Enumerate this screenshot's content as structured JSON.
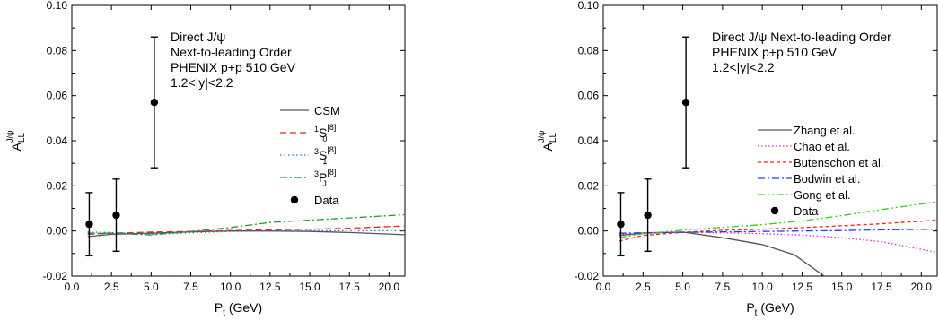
{
  "chart_data": [
    {
      "type": "line",
      "xlabel": "P",
      "xlabel_sub": "t",
      "xlabel_unit": " (GeV)",
      "ylabel": "A",
      "ylabel_sub": "LL",
      "ylabel_sup": "J/ψ",
      "xlim": [
        0,
        21
      ],
      "ylim": [
        -0.02,
        0.1
      ],
      "xticks": [
        "0.0",
        "2.5",
        "5.0",
        "7.5",
        "10.0",
        "12.5",
        "15.0",
        "17.5",
        "20.0"
      ],
      "xtick_values": [
        0,
        2.5,
        5,
        7.5,
        10,
        12.5,
        15,
        17.5,
        20
      ],
      "yticks": [
        "-0.02",
        "0.00",
        "0.02",
        "0.04",
        "0.06",
        "0.08",
        "0.10"
      ],
      "ytick_values": [
        -0.02,
        0,
        0.02,
        0.04,
        0.06,
        0.08,
        0.1
      ],
      "annotation": [
        "Direct J/ψ",
        "Next-to-leading Order",
        "PHENIX p+p 510 GeV",
        "1.2<|y|<2.2"
      ],
      "legend_position": "right",
      "series": [
        {
          "name": "CSM",
          "color": "#555555",
          "dash": "",
          "x": [
            1,
            2.5,
            5,
            7.5,
            10,
            12.5,
            15,
            17.5,
            21
          ],
          "y": [
            -0.0025,
            -0.0015,
            -0.001,
            -0.0004,
            0,
            0,
            -0.0002,
            -0.0007,
            -0.0017
          ]
        },
        {
          "name": "1S0[8]",
          "label_pre": "1",
          "label_main": "S",
          "label_sub": "0",
          "label_sup": "[8]",
          "color": "#e8271f",
          "dash": "7,4",
          "x": [
            1,
            2.5,
            5,
            7.5,
            10,
            12.5,
            15,
            17.5,
            21
          ],
          "y": [
            -0.0015,
            -0.001,
            -0.0005,
            -0.0002,
            0.0002,
            0.0005,
            0.0008,
            0.0012,
            0.0022
          ]
        },
        {
          "name": "3S1[8]",
          "label_pre": "3",
          "label_main": "S",
          "label_sub": "1",
          "label_sup": "[8]",
          "color": "#1f6fe8",
          "dash": "1.5,3",
          "x": [
            1,
            2.5,
            5,
            7.5,
            10,
            12.5,
            15,
            17.5,
            21
          ],
          "y": [
            -0.0005,
            -0.0007,
            -0.0015,
            -0.0008,
            -0.0002,
            0,
            0.0001,
            0.0001,
            0.0001
          ]
        },
        {
          "name": "3PJ[8]",
          "label_pre": "3",
          "label_main": "P",
          "label_sub": "J",
          "label_sup": "[8]",
          "color": "#1a9e3a",
          "dash": "8,3,2,3",
          "x": [
            1,
            2.5,
            5,
            7.5,
            10,
            12.5,
            15,
            17.5,
            21
          ],
          "y": [
            -0.001,
            -0.001,
            -0.0018,
            -0.0002,
            0.0015,
            0.0038,
            0.0048,
            0.0058,
            0.0072
          ]
        }
      ],
      "data_label": "Data",
      "data_points": [
        {
          "x": 1.1,
          "y": 0.003,
          "err_low": 0.014,
          "err_high": 0.014
        },
        {
          "x": 2.8,
          "y": 0.007,
          "err_low": 0.016,
          "err_high": 0.016
        },
        {
          "x": 5.2,
          "y": 0.057,
          "err_low": 0.029,
          "err_high": 0.029
        }
      ]
    },
    {
      "type": "line",
      "xlabel": "P",
      "xlabel_sub": "t",
      "xlabel_unit": " (GeV)",
      "ylabel": "A",
      "ylabel_sub": "LL",
      "ylabel_sup": "J/ψ",
      "xlim": [
        0,
        21
      ],
      "ylim": [
        -0.02,
        0.1
      ],
      "xticks": [
        "0.0",
        "2.5",
        "5.0",
        "7.5",
        "10.0",
        "12.5",
        "15.0",
        "17.5",
        "20.0"
      ],
      "xtick_values": [
        0,
        2.5,
        5,
        7.5,
        10,
        12.5,
        15,
        17.5,
        20
      ],
      "yticks": [
        "-0.02",
        "0.00",
        "0.02",
        "0.04",
        "0.06",
        "0.08",
        "0.10"
      ],
      "ytick_values": [
        -0.02,
        0,
        0.02,
        0.04,
        0.06,
        0.08,
        0.1
      ],
      "annotation": [
        "Direct J/ψ    Next-to-leading Order",
        "PHENIX p+p 510 GeV",
        "1.2<|y|<2.2"
      ],
      "legend_position": "right",
      "series": [
        {
          "name": "Zhang et al.",
          "color": "#555555",
          "dash": "",
          "x": [
            1,
            2.5,
            5,
            7.5,
            10,
            12,
            14
          ],
          "y": [
            -0.002,
            -0.001,
            -0.0005,
            -0.003,
            -0.006,
            -0.0105,
            -0.0205
          ]
        },
        {
          "name": "Chao et al.",
          "color": "#d62ac2",
          "dash": "1.5,2.5",
          "x": [
            1,
            2.5,
            5,
            7.5,
            10,
            12.5,
            15,
            17.5,
            21
          ],
          "y": [
            -0.0015,
            -0.0008,
            -0.0005,
            -0.0008,
            -0.0012,
            -0.0018,
            -0.003,
            -0.0048,
            -0.0095
          ]
        },
        {
          "name": "Butenschon et al.",
          "color": "#e8271f",
          "dash": "4,3",
          "x": [
            1,
            2.5,
            5,
            7.5,
            10,
            12.5,
            15,
            17.5,
            21
          ],
          "y": [
            -0.0045,
            -0.002,
            -0.0006,
            0.0003,
            0.0008,
            0.0015,
            0.0023,
            0.0032,
            0.0048
          ]
        },
        {
          "name": "Bodwin et al.",
          "color": "#1f3fe8",
          "dash": "8,3,2,3",
          "x": [
            1,
            2.5,
            5,
            7.5,
            10,
            12.5,
            15,
            17.5,
            21
          ],
          "y": [
            -0.001,
            -0.0008,
            -0.0006,
            -0.0004,
            -0.0002,
            0,
            0.0002,
            0.0005,
            0.0008
          ]
        },
        {
          "name": "Gong et al.",
          "color": "#33d11f",
          "dash": "8,3,2,3,2,3",
          "x": [
            1,
            2.5,
            5,
            7.5,
            10,
            12.5,
            15,
            17.5,
            21
          ],
          "y": [
            -0.003,
            -0.0012,
            0.0004,
            0.0016,
            0.0028,
            0.0045,
            0.0068,
            0.0095,
            0.013
          ]
        }
      ],
      "data_label": "Data",
      "data_points": [
        {
          "x": 1.1,
          "y": 0.003,
          "err_low": 0.014,
          "err_high": 0.014
        },
        {
          "x": 2.8,
          "y": 0.007,
          "err_low": 0.016,
          "err_high": 0.016
        },
        {
          "x": 5.2,
          "y": 0.057,
          "err_low": 0.029,
          "err_high": 0.029
        }
      ]
    }
  ]
}
